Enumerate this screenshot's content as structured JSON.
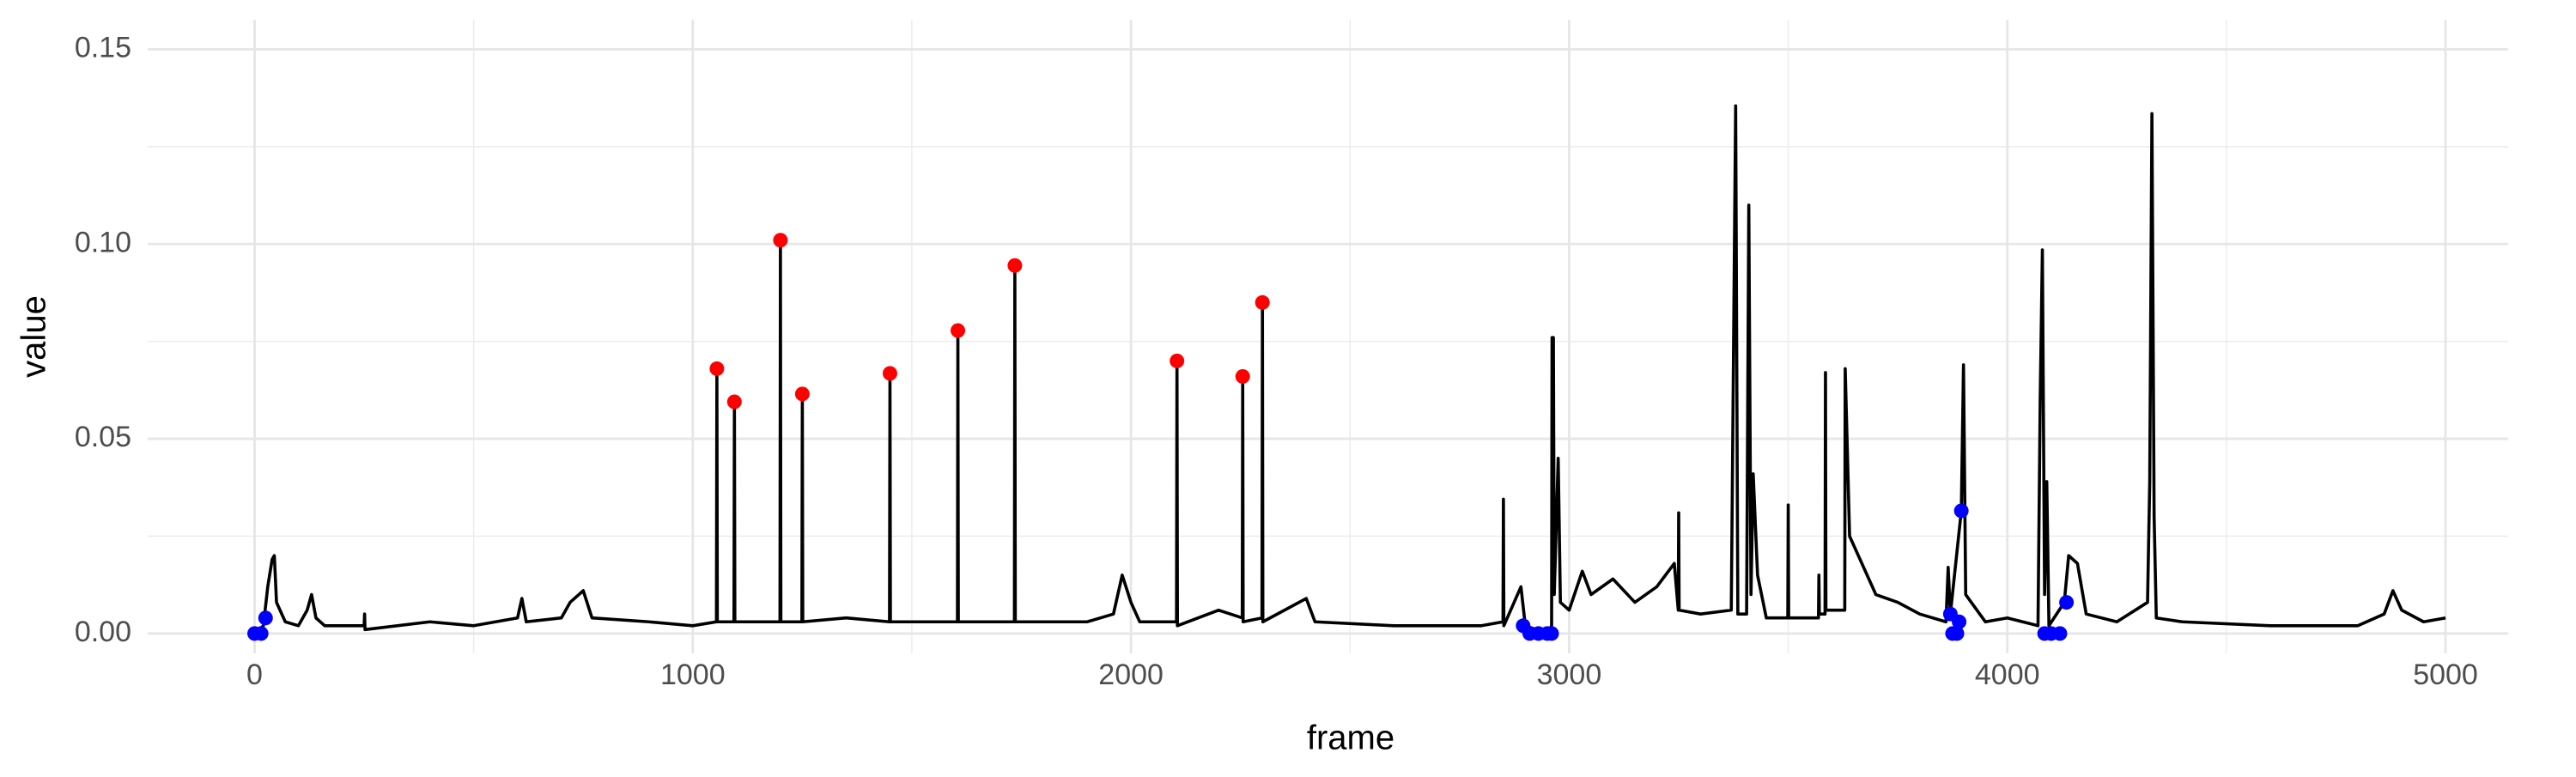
{
  "chart_data": {
    "type": "line",
    "x_label": "frame",
    "y_label": "value",
    "xlim": [
      -244,
      5143
    ],
    "ylim": [
      -0.0051,
      0.1576
    ],
    "xticks": [
      0,
      1000,
      2000,
      3000,
      4000,
      5000
    ],
    "yticks": [
      {
        "value": 0,
        "label": "0.00"
      },
      {
        "value": 0.05,
        "label": "0.05"
      },
      {
        "value": 0.1,
        "label": "0.10"
      },
      {
        "value": 0.15,
        "label": "0.15"
      }
    ],
    "minor_xticks": [
      500,
      1500,
      2500,
      3500,
      4500
    ],
    "minor_yticks": [
      0.025,
      0.075,
      0.125
    ],
    "grid": true,
    "series": [
      {
        "type": "line",
        "color": "#000000",
        "x": [
          0,
          20,
          30,
          40,
          45,
          50,
          70,
          100,
          120,
          130,
          140,
          160,
          250,
          251,
          252,
          400,
          500,
          600,
          610,
          620,
          700,
          720,
          750,
          770,
          900,
          1000,
          1054,
          1055,
          1056,
          1094,
          1095,
          1096,
          1199,
          1200,
          1201,
          1249,
          1250,
          1251,
          1350,
          1449,
          1450,
          1451,
          1604,
          1605,
          1606,
          1734,
          1735,
          1736,
          1900,
          1960,
          1980,
          2000,
          2020,
          2104,
          2105,
          2106,
          2200,
          2254,
          2255,
          2256,
          2299,
          2300,
          2301,
          2400,
          2420,
          2600,
          2800,
          2849,
          2850,
          2851,
          2890,
          2900,
          2950,
          2960,
          2961,
          2964,
          2966,
          2975,
          2980,
          3000,
          3030,
          3050,
          3100,
          3150,
          3200,
          3240,
          3249,
          3250,
          3251,
          3300,
          3370,
          3380,
          3385,
          3405,
          3410,
          3415,
          3420,
          3430,
          3450,
          3499,
          3500,
          3501,
          3569,
          3570,
          3571,
          3584,
          3585,
          3586,
          3629,
          3630,
          3640,
          3660,
          3700,
          3750,
          3800,
          3860,
          3865,
          3870,
          3895,
          3900,
          3905,
          3950,
          4000,
          4070,
          4075,
          4080,
          4085,
          4090,
          4095,
          4130,
          4140,
          4160,
          4180,
          4250,
          4320,
          4325,
          4330,
          4335,
          4340,
          4400,
          4600,
          4800,
          4860,
          4880,
          4900,
          4950,
          5000
        ],
        "values": [
          0,
          0.002,
          0.012,
          0.019,
          0.02,
          0.008,
          0.003,
          0.002,
          0.006,
          0.01,
          0.004,
          0.002,
          0.002,
          0.005,
          0.001,
          0.003,
          0.002,
          0.004,
          0.009,
          0.003,
          0.004,
          0.008,
          0.011,
          0.004,
          0.003,
          0.002,
          0.003,
          0.068,
          0.003,
          0.003,
          0.0595,
          0.003,
          0.003,
          0.101,
          0.003,
          0.003,
          0.0615,
          0.003,
          0.004,
          0.003,
          0.0668,
          0.003,
          0.003,
          0.0778,
          0.003,
          0.003,
          0.0945,
          0.003,
          0.003,
          0.005,
          0.015,
          0.008,
          0.003,
          0.003,
          0.07,
          0.002,
          0.006,
          0.004,
          0.066,
          0.003,
          0.004,
          0.085,
          0.003,
          0.009,
          0.003,
          0.002,
          0.002,
          0.003,
          0.0345,
          0.002,
          0.012,
          0.002,
          0,
          0.002,
          0.076,
          0.076,
          0.01,
          0.045,
          0.008,
          0.006,
          0.016,
          0.01,
          0.014,
          0.008,
          0.012,
          0.018,
          0.006,
          0.031,
          0.006,
          0.005,
          0.006,
          0.1355,
          0.005,
          0.005,
          0.11,
          0.01,
          0.041,
          0.015,
          0.004,
          0.004,
          0.033,
          0.004,
          0.004,
          0.015,
          0.005,
          0.005,
          0.067,
          0.006,
          0.006,
          0.068,
          0.025,
          0.02,
          0.01,
          0.008,
          0.005,
          0.003,
          0.017,
          0.005,
          0.0315,
          0.069,
          0.01,
          0.003,
          0.004,
          0.002,
          0.06,
          0.0985,
          0.01,
          0.039,
          0.002,
          0.008,
          0.02,
          0.018,
          0.005,
          0.003,
          0.008,
          0.039,
          0.1335,
          0.03,
          0.004,
          0.003,
          0.002,
          0.002,
          0.005,
          0.011,
          0.006,
          0.003,
          0.004
        ]
      },
      {
        "type": "scatter",
        "color": "#ff0000",
        "x": [
          1055,
          1095,
          1200,
          1250,
          1450,
          1605,
          1735,
          2105,
          2255,
          2300
        ],
        "values": [
          0.068,
          0.0595,
          0.101,
          0.0615,
          0.0668,
          0.0778,
          0.0945,
          0.07,
          0.066,
          0.085
        ]
      },
      {
        "type": "scatter",
        "color": "#0000ff",
        "x": [
          0,
          15,
          25,
          2895,
          2910,
          2930,
          2950,
          2960,
          3870,
          3875,
          3885,
          3890,
          3895,
          4085,
          4100,
          4120,
          4135
        ],
        "values": [
          0,
          0,
          0.004,
          0.002,
          0,
          0,
          0,
          0,
          0.005,
          0,
          0,
          0.003,
          0.0315,
          0,
          0,
          0,
          0.008
        ]
      }
    ]
  }
}
